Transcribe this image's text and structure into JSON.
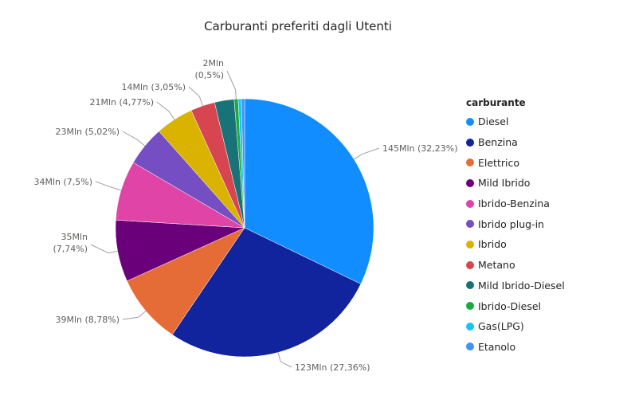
{
  "chart_data": {
    "type": "pie",
    "title": "Carburanti preferiti dagli Utenti",
    "legend_title": "carburante",
    "legend_position": "right",
    "slices": [
      {
        "name": "Diesel",
        "value": 145,
        "percent": 32.23,
        "color": "#118DFF",
        "label": "145Mln (32,23%)"
      },
      {
        "name": "Benzina",
        "value": 123,
        "percent": 27.36,
        "color": "#12239E",
        "label": "123Mln (27,36%)"
      },
      {
        "name": "Elettrico",
        "value": 39,
        "percent": 8.78,
        "color": "#E66C37",
        "label": "39Mln (8,78%)"
      },
      {
        "name": "Mild Ibrido",
        "value": 35,
        "percent": 7.74,
        "color": "#6B007B",
        "label": "35Mln (7,74%)"
      },
      {
        "name": "Ibrido-Benzina",
        "value": 34,
        "percent": 7.5,
        "color": "#E044A7",
        "label": "34Mln (7,5%)"
      },
      {
        "name": "Ibrido plug-in",
        "value": 23,
        "percent": 5.02,
        "color": "#744EC2",
        "label": "23Mln (5,02%)"
      },
      {
        "name": "Ibrido",
        "value": 21,
        "percent": 4.77,
        "color": "#D9B300",
        "label": "21Mln (4,77%)"
      },
      {
        "name": "Metano",
        "value": 14,
        "percent": 3.05,
        "color": "#D64550",
        "label": "14Mln (3,05%)"
      },
      {
        "name": "Mild Ibrido-Diesel",
        "value": 11,
        "percent": 2.45,
        "color": "#197278",
        "label": ""
      },
      {
        "name": "Ibrido-Diesel",
        "value": 2,
        "percent": 0.5,
        "color": "#1AAB40",
        "label": "2Mln (0,5%)"
      },
      {
        "name": "Gas(LPG)",
        "value": 2,
        "percent": 0.4,
        "color": "#15C6F4",
        "label": ""
      },
      {
        "name": "Etanolo",
        "value": 2,
        "percent": 0.4,
        "color": "#4092FF",
        "label": ""
      }
    ]
  }
}
